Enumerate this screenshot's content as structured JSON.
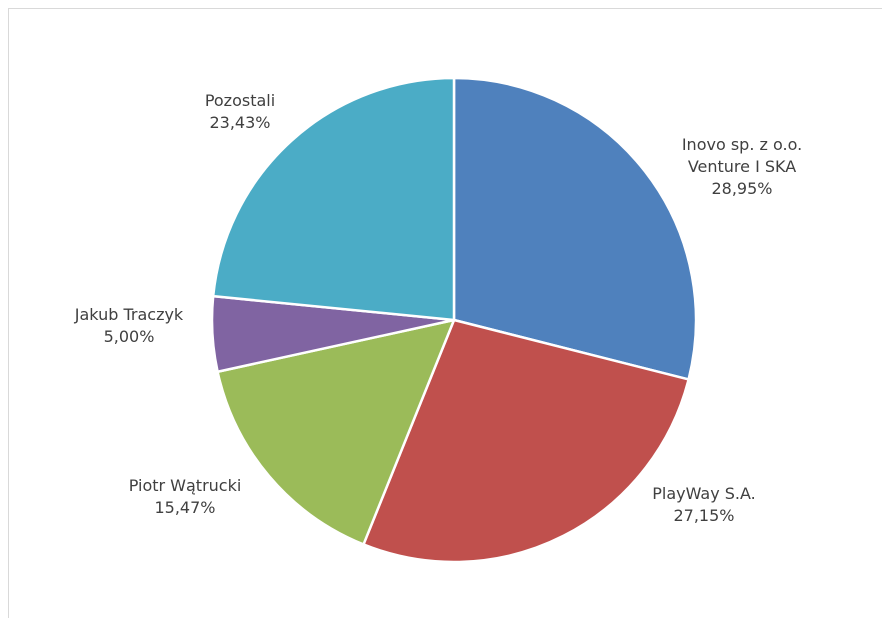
{
  "chart_data": {
    "type": "pie",
    "title": "",
    "start_angle_deg": 0,
    "direction": "clockwise",
    "slices": [
      {
        "name": "Inovo sp. z o.o. Venture I SKA",
        "label_lines": [
          "Inovo sp. z o.o.",
          "Venture I SKA"
        ],
        "value": 28.95,
        "value_label": "28,95%",
        "color": "#4f81bd"
      },
      {
        "name": "PlayWay S.A.",
        "label_lines": [
          "PlayWay S.A."
        ],
        "value": 27.15,
        "value_label": "27,15%",
        "color": "#c0504d"
      },
      {
        "name": "Piotr Wątrucki",
        "label_lines": [
          "Piotr Wątrucki"
        ],
        "value": 15.47,
        "value_label": "15,47%",
        "color": "#9bbb59"
      },
      {
        "name": "Jakub Traczyk",
        "label_lines": [
          "Jakub Traczyk"
        ],
        "value": 5.0,
        "value_label": "5,00%",
        "color": "#8064a2"
      },
      {
        "name": "Pozostali",
        "label_lines": [
          "Pozostali"
        ],
        "value": 23.43,
        "value_label": "23,43%",
        "color": "#4bacc6"
      }
    ]
  }
}
